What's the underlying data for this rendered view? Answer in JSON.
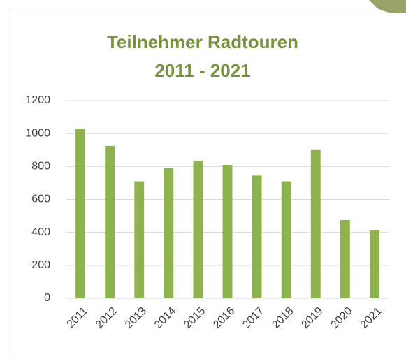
{
  "chart_data": {
    "type": "bar",
    "title": [
      "Teilnehmer Radtouren",
      "2011 - 2021"
    ],
    "categories": [
      "2011",
      "2012",
      "2013",
      "2014",
      "2015",
      "2016",
      "2017",
      "2018",
      "2019",
      "2020",
      "2021"
    ],
    "values": [
      1030,
      925,
      710,
      790,
      835,
      810,
      745,
      710,
      900,
      475,
      415
    ],
    "color": "#8fb250",
    "ylim": [
      0,
      1200
    ],
    "yticks": [
      0,
      200,
      400,
      600,
      800,
      1000,
      1200
    ],
    "grid": true
  }
}
